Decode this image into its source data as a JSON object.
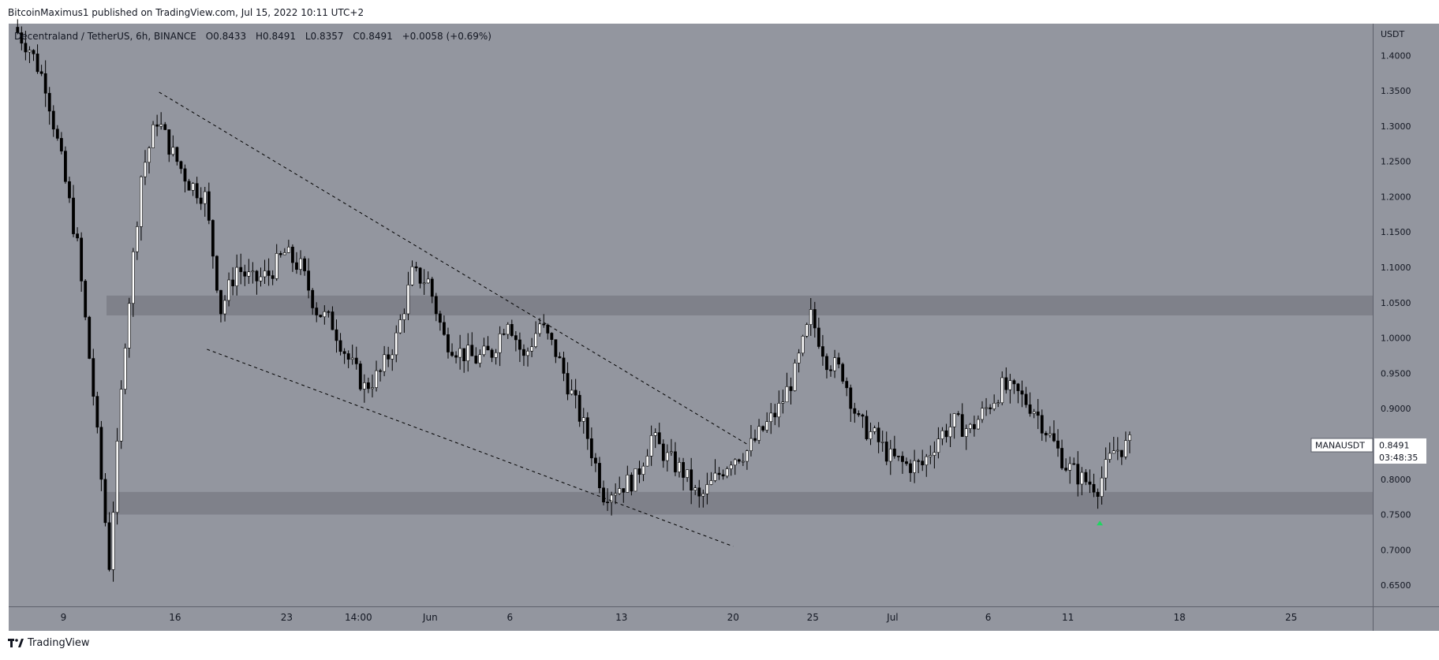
{
  "header": {
    "published_text": "BitcoinMaximus1 published on TradingView.com, Jul 15, 2022 10:11 UTC+2"
  },
  "legend": {
    "symbol": "Decentraland / TetherUS, 6h, BINANCE",
    "open_label": "O",
    "open": "0.8433",
    "high_label": "H",
    "high": "0.8491",
    "low_label": "L",
    "low": "0.8357",
    "close_label": "C",
    "close": "0.8491",
    "change": "+0.0058 (+0.69%)"
  },
  "price_tag": {
    "symbol": "MANAUSDT",
    "price": "0.8491",
    "countdown": "03:48:35"
  },
  "footer": {
    "brand": "TradingView",
    "logo_icon": "tradingview-logo-icon"
  },
  "colors": {
    "background": "#93969f",
    "candle_up": "#ffffff",
    "candle_down": "#000000",
    "zone": "#7b7e86",
    "signal_arrow": "#1ed760"
  },
  "chart_data": {
    "type": "candlestick",
    "title": "",
    "ylabel": "USDT",
    "ylim": [
      0.62,
      1.445
    ],
    "y_ticks": [
      "1.4000",
      "1.3500",
      "1.3000",
      "1.2500",
      "1.2000",
      "1.1500",
      "1.1000",
      "1.0500",
      "1.0000",
      "0.9500",
      "0.9000",
      "0.8500",
      "0.8000",
      "0.7500",
      "0.7000",
      "0.6500"
    ],
    "x_ticks": [
      "9",
      "16",
      "23",
      "14:00",
      "Jun",
      "6",
      "13",
      "20",
      "25",
      "Jul",
      "6",
      "11",
      "18",
      "25"
    ],
    "interval": "6h",
    "last_price": 0.8491,
    "zones": [
      {
        "low": 1.032,
        "high": 1.06
      },
      {
        "low": 0.75,
        "high": 0.782
      }
    ],
    "trendlines": [
      {
        "x1": "May 15",
        "y1": 1.348,
        "x2": "Jun 21",
        "y2": 0.848
      },
      {
        "x1": "May 18",
        "y1": 0.984,
        "x2": "Jun 20",
        "y2": 0.705
      }
    ],
    "signals": [
      {
        "x": "Jul 13",
        "y": 0.738,
        "type": "up-arrow"
      }
    ],
    "path_points": [
      [
        "May 6",
        1.44
      ],
      [
        "May 7",
        1.41
      ],
      [
        "May 8",
        1.36
      ],
      [
        "May 9",
        1.25
      ],
      [
        "May 10",
        1.13
      ],
      [
        "May 11",
        0.92
      ],
      [
        "May 12",
        0.68
      ],
      [
        "May 13",
        1.0
      ],
      [
        "May 14",
        1.23
      ],
      [
        "May 15",
        1.31
      ],
      [
        "May 16",
        1.26
      ],
      [
        "May 17",
        1.22
      ],
      [
        "May 18",
        1.2
      ],
      [
        "May 19",
        1.04
      ],
      [
        "May 20",
        1.1
      ],
      [
        "May 21",
        1.08
      ],
      [
        "May 22",
        1.09
      ],
      [
        "May 23",
        1.12
      ],
      [
        "May 24",
        1.1
      ],
      [
        "May 25",
        1.04
      ],
      [
        "May 26",
        1.02
      ],
      [
        "May 27",
        0.97
      ],
      [
        "May 28",
        0.93
      ],
      [
        "May 29",
        0.95
      ],
      [
        "May 30",
        1.0
      ],
      [
        "May 31",
        1.09
      ],
      [
        "Jun 1",
        1.08
      ],
      [
        "Jun 2",
        1.0
      ],
      [
        "Jun 3",
        0.98
      ],
      [
        "Jun 4",
        0.97
      ],
      [
        "Jun 5",
        0.98
      ],
      [
        "Jun 6",
        1.03
      ],
      [
        "Jun 7",
        0.97
      ],
      [
        "Jun 8",
        1.02
      ],
      [
        "Jun 9",
        0.98
      ],
      [
        "Jun 10",
        0.92
      ],
      [
        "Jun 11",
        0.86
      ],
      [
        "Jun 12",
        0.78
      ],
      [
        "Jun 13",
        0.79
      ],
      [
        "Jun 14",
        0.8
      ],
      [
        "Jun 15",
        0.86
      ],
      [
        "Jun 16",
        0.83
      ],
      [
        "Jun 17",
        0.81
      ],
      [
        "Jun 18",
        0.77
      ],
      [
        "Jun 19",
        0.8
      ],
      [
        "Jun 20",
        0.83
      ],
      [
        "Jun 21",
        0.84
      ],
      [
        "Jun 22",
        0.87
      ],
      [
        "Jun 23",
        0.9
      ],
      [
        "Jun 24",
        0.95
      ],
      [
        "Jun 25",
        1.03
      ],
      [
        "Jun 26",
        0.97
      ],
      [
        "Jun 27",
        0.95
      ],
      [
        "Jun 28",
        0.88
      ],
      [
        "Jun 29",
        0.86
      ],
      [
        "Jun 30",
        0.83
      ],
      [
        "Jul 1",
        0.82
      ],
      [
        "Jul 2",
        0.82
      ],
      [
        "Jul 3",
        0.86
      ],
      [
        "Jul 4",
        0.88
      ],
      [
        "Jul 5",
        0.87
      ],
      [
        "Jul 6",
        0.9
      ],
      [
        "Jul 7",
        0.93
      ],
      [
        "Jul 8",
        0.92
      ],
      [
        "Jul 9",
        0.9
      ],
      [
        "Jul 10",
        0.86
      ],
      [
        "Jul 11",
        0.82
      ],
      [
        "Jul 12",
        0.8
      ],
      [
        "Jul 13",
        0.79
      ],
      [
        "Jul 14",
        0.84
      ],
      [
        "Jul 15",
        0.849
      ]
    ]
  }
}
